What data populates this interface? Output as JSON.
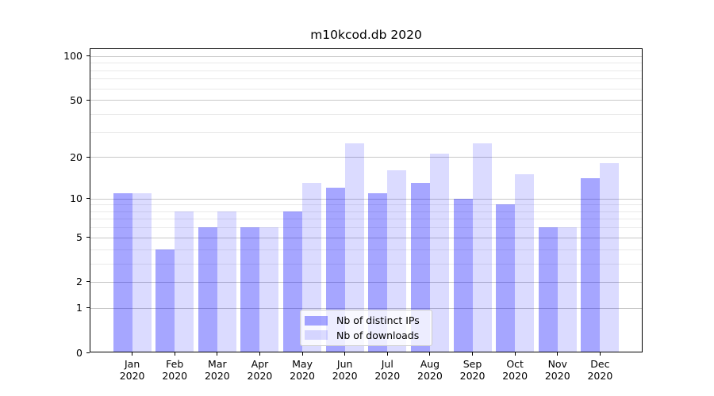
{
  "chart_data": {
    "type": "bar",
    "title": "m10kcod.db 2020",
    "categories": [
      "Jan",
      "Feb",
      "Mar",
      "Apr",
      "May",
      "Jun",
      "Jul",
      "Aug",
      "Sep",
      "Oct",
      "Nov",
      "Dec"
    ],
    "year_label": "2020",
    "series": [
      {
        "id": "distinct-ips",
        "name": "Nb of distinct IPs",
        "color": "#0000ff",
        "alpha": 0.35,
        "color_on_white": "#a6a6ff",
        "values": [
          11,
          4,
          6,
          6,
          8,
          12,
          11,
          13,
          10,
          9,
          6,
          14
        ]
      },
      {
        "id": "downloads",
        "name": "Nb of downloads",
        "color": "#0000ff",
        "alpha": 0.14,
        "color_on_white": "#dbdbff",
        "values": [
          11,
          8,
          8,
          6,
          13,
          25,
          16,
          21,
          25,
          15,
          6,
          18
        ]
      }
    ],
    "yscale": "log1p",
    "ylim": [
      0,
      113
    ],
    "yticks": [
      0,
      1,
      2,
      5,
      10,
      20,
      50,
      100
    ],
    "minor_gridlines": [
      3,
      4,
      6,
      7,
      8,
      9,
      30,
      40,
      60,
      70,
      80,
      90
    ],
    "grid": true,
    "legend_position": "lower-center-inside",
    "colors": {
      "major_grid": "#c8c8c8",
      "minor_grid": "#e9e9e9",
      "axis": "#000000",
      "background": "#ffffff"
    }
  }
}
